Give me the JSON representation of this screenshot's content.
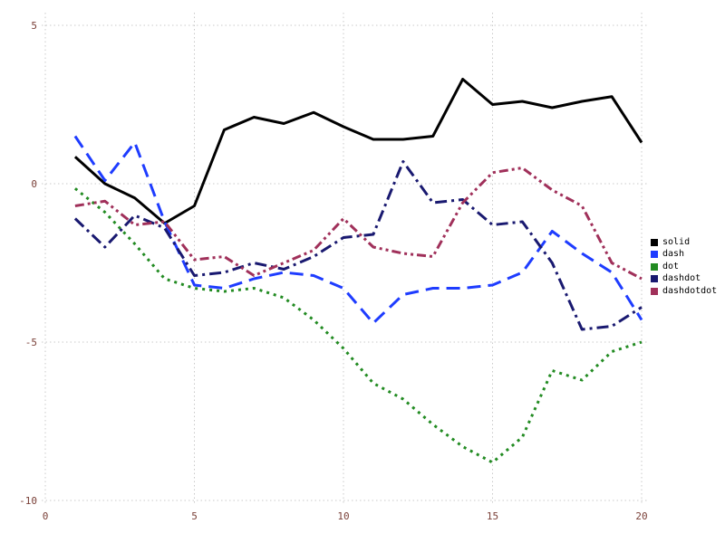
{
  "chart_data": {
    "type": "line",
    "title": "",
    "xlabel": "",
    "ylabel": "",
    "xlim": [
      0,
      20
    ],
    "ylim": [
      -10,
      5
    ],
    "xticks": [
      "0",
      "5",
      "10",
      "15",
      "20"
    ],
    "yticks": [
      "-10",
      "-5",
      "0",
      "5"
    ],
    "grid": true,
    "legend_position": "right",
    "x": [
      1,
      2,
      3,
      4,
      5,
      6,
      7,
      8,
      9,
      10,
      11,
      12,
      13,
      14,
      15,
      16,
      17,
      18,
      19,
      20
    ],
    "series": [
      {
        "name": "solid",
        "color": "#000000",
        "dash": "solid",
        "values": [
          0.85,
          0.0,
          -0.45,
          -1.25,
          -0.7,
          1.7,
          2.1,
          1.9,
          2.25,
          1.8,
          1.4,
          1.4,
          1.5,
          3.3,
          2.5,
          2.6,
          2.4,
          2.6,
          2.75,
          1.3
        ]
      },
      {
        "name": "dash",
        "color": "#1e3cff",
        "dash": "dash",
        "values": [
          1.5,
          0.1,
          1.3,
          -1.2,
          -3.2,
          -3.3,
          -3.0,
          -2.8,
          -2.9,
          -3.3,
          -4.4,
          -3.5,
          -3.3,
          -3.3,
          -3.2,
          -2.8,
          -1.5,
          -2.2,
          -2.8,
          -4.3
        ]
      },
      {
        "name": "dot",
        "color": "#228b22",
        "dash": "dot",
        "values": [
          -0.15,
          -0.9,
          -1.9,
          -3.0,
          -3.3,
          -3.4,
          -3.3,
          -3.6,
          -4.3,
          -5.2,
          -6.3,
          -6.8,
          -7.6,
          -8.3,
          -8.8,
          -8.0,
          -5.9,
          -6.2,
          -5.3,
          -5.0
        ]
      },
      {
        "name": "dashdot",
        "color": "#191970",
        "dash": "dashdot",
        "values": [
          -1.1,
          -2.0,
          -1.0,
          -1.4,
          -2.9,
          -2.8,
          -2.5,
          -2.7,
          -2.3,
          -1.7,
          -1.6,
          0.7,
          -0.6,
          -0.5,
          -1.3,
          -1.2,
          -2.5,
          -4.6,
          -4.5,
          -3.9
        ]
      },
      {
        "name": "dashdotdot",
        "color": "#a0305a",
        "dash": "dashdotdot",
        "values": [
          -0.7,
          -0.55,
          -1.3,
          -1.2,
          -2.4,
          -2.3,
          -2.9,
          -2.5,
          -2.1,
          -1.1,
          -2.0,
          -2.2,
          -2.3,
          -0.6,
          0.35,
          0.5,
          -0.2,
          -0.7,
          -2.5,
          -3.0
        ]
      }
    ],
    "legend_entries": [
      "solid",
      "dash",
      "dot",
      "dashdot",
      "dashdotdot"
    ]
  }
}
